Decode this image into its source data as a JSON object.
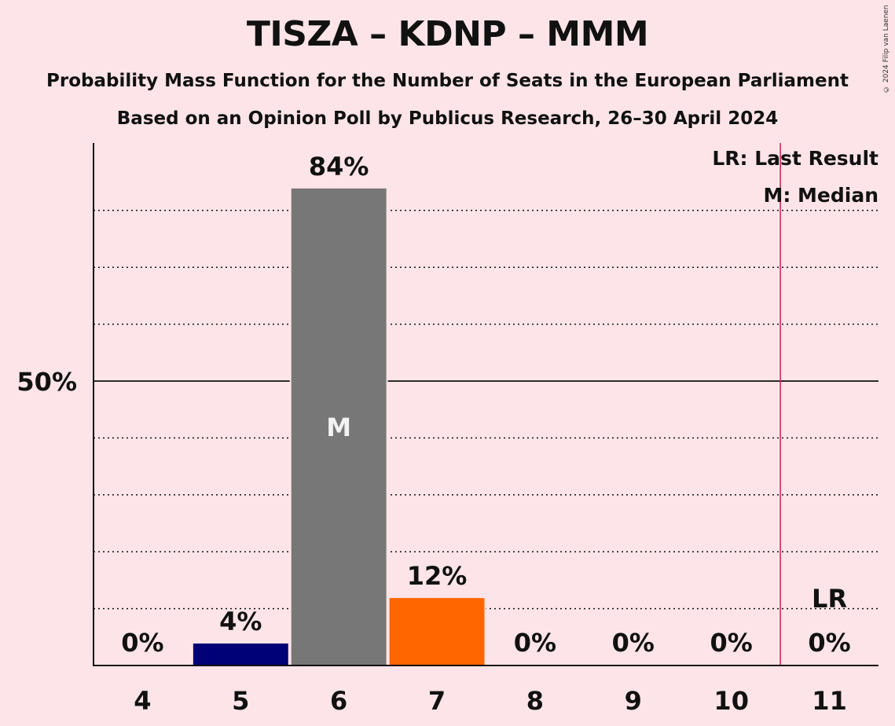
{
  "header": {
    "title": "TISZA – KDNP – MMM",
    "subtitle1": "Probability Mass Function for the Number of Seats in the European Parliament",
    "subtitle2": "Based on an Opinion Poll by Publicus Research, 26–30 April 2024",
    "copyright": "© 2024 Filip van Laenen"
  },
  "legend": {
    "last_result": "LR: Last Result",
    "median": "M: Median"
  },
  "chart_data": {
    "type": "bar",
    "title": "TISZA – KDNP – MMM",
    "categories": [
      "4",
      "5",
      "6",
      "7",
      "8",
      "9",
      "10",
      "11"
    ],
    "values": [
      0,
      4,
      84,
      12,
      0,
      0,
      0,
      0
    ],
    "labels": [
      "0%",
      "4%",
      "84%",
      "12%",
      "0%",
      "0%",
      "0%",
      "0%"
    ],
    "bar_colors": [
      "#000077",
      "#000077",
      "#777777",
      "#FF6600",
      "#000077",
      "#000077",
      "#000077",
      "#000077"
    ],
    "ylim": [
      0,
      92
    ],
    "y_tick": {
      "value": 50,
      "label": "50%"
    },
    "dotted_gridlines": [
      10,
      20,
      30,
      40,
      60,
      70,
      80
    ],
    "median_seat": "6",
    "median_label": "M",
    "last_result_seat": "11",
    "last_result_label": "LR",
    "last_result_line_color": "#C0245A"
  }
}
